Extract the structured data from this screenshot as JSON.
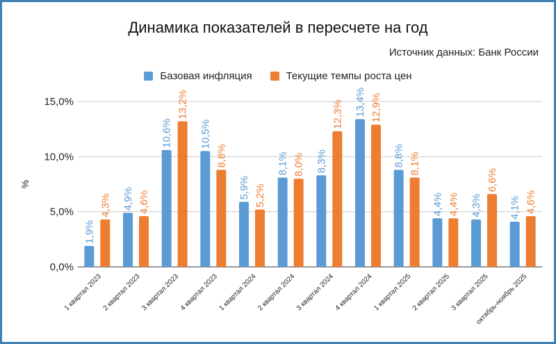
{
  "chart_data": {
    "type": "bar",
    "title": "Динамика показателей в пересчете на год",
    "subtitle": "Источник данных: Банк России",
    "ylabel": "%",
    "xlabel": "",
    "ylim": [
      0,
      15
    ],
    "yticks": [
      "0,0%",
      "5,0%",
      "10,0%",
      "15,0%"
    ],
    "grid": true,
    "legend": "top",
    "categories": [
      "1 квартал 2023",
      "2 квартал 2023",
      "3 квартал 2023",
      "4 квартал 2023",
      "1 квартал 2024",
      "2 квартал 2024",
      "3 квартал 2024",
      "4 квартал 2024",
      "1 квартал 2025",
      "2 квартал 2025",
      "3 квартал 2025",
      "октябрь-ноябрь 2025"
    ],
    "series": [
      {
        "name": "Базовая инфляция",
        "color": "#5b9bd5",
        "values": [
          1.9,
          4.9,
          10.6,
          10.5,
          5.9,
          8.1,
          8.3,
          13.4,
          8.8,
          4.4,
          4.3,
          4.1
        ]
      },
      {
        "name": "Текущие темпы роста цен",
        "color": "#ed7d31",
        "values": [
          4.3,
          4.6,
          13.2,
          8.8,
          5.2,
          8.0,
          12.3,
          12.9,
          8.1,
          4.4,
          6.6,
          4.6
        ]
      }
    ]
  }
}
